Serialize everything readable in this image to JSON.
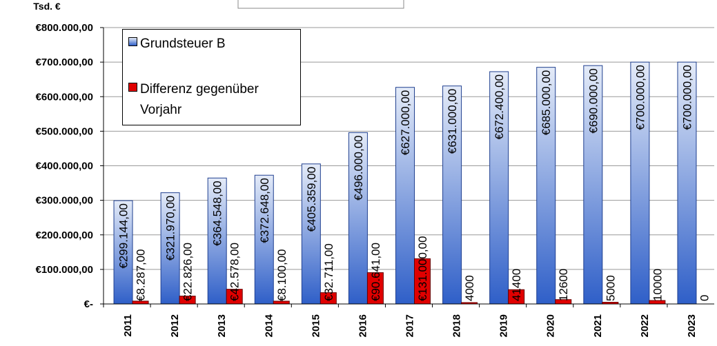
{
  "chart_data": {
    "type": "bar",
    "y_label": "Tsd. €",
    "categories": [
      "2011",
      "2012",
      "2013",
      "2014",
      "2015",
      "2016",
      "2017",
      "2018",
      "2019",
      "2020",
      "2021",
      "2022",
      "2023"
    ],
    "series": [
      {
        "name": "Grundsteuer B",
        "color": "#2f5fc8",
        "values": [
          299144,
          321970,
          364548,
          372648,
          405359,
          496000,
          627000,
          631000,
          672400,
          685000,
          690000,
          700000,
          700000
        ],
        "value_labels": [
          "€299.144,00",
          "€321.970,00",
          "€364.548,00",
          "€372.648,00",
          "€405.359,00",
          "€496.000,00",
          "€627.000,00",
          "€631.000,00",
          "€672.400,00",
          "€685.000,00",
          "€690.000,00",
          "€700.000,00",
          "€700.000,00"
        ]
      },
      {
        "name": "Differenz gegenüber Vorjahr",
        "color": "#e00000",
        "values": [
          8287,
          22826,
          42578,
          8100,
          32711,
          90641,
          131000,
          4000,
          41400,
          12600,
          5000,
          10000,
          0
        ],
        "value_labels": [
          "€8.287,00",
          "€22.826,00",
          "€42.578,00",
          "€8.100,00",
          "€32.711,00",
          "€90.641,00",
          "€131.000,00",
          "4000",
          "41400",
          "12600",
          "5000",
          "10000",
          "0"
        ]
      }
    ],
    "ylim": [
      0,
      800000
    ],
    "yticks": [
      {
        "value": 0,
        "label": "€-"
      },
      {
        "value": 100000,
        "label": "€100.000,00"
      },
      {
        "value": 200000,
        "label": "€200.000,00"
      },
      {
        "value": 300000,
        "label": "€300.000,00"
      },
      {
        "value": 400000,
        "label": "€400.000,00"
      },
      {
        "value": 500000,
        "label": "€500.000,00"
      },
      {
        "value": 600000,
        "label": "€600.000,00"
      },
      {
        "value": 700000,
        "label": "€700.000,00"
      },
      {
        "value": 800000,
        "label": "€800.000,00"
      }
    ],
    "grid": true,
    "legend": "upper left"
  }
}
